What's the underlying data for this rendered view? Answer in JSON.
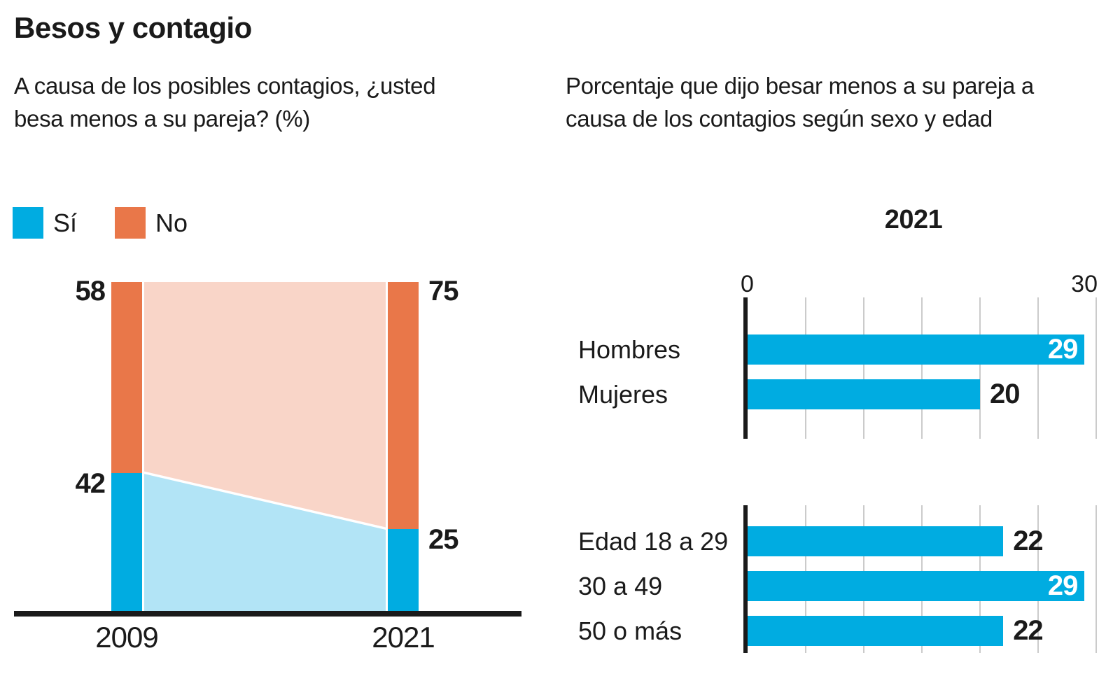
{
  "title": "Besos y contagio",
  "right_subtitle": "Porcentaje que dijo besar menos a su pareja a causa de los contagios según sexo y edad",
  "colors": {
    "blue": "#00ACE1",
    "light_blue": "#B2E4F6",
    "orange": "#E97749",
    "light_orange": "#F9D5C8",
    "text": "#1a1a1a",
    "grid": "#cbcbcb"
  },
  "chart_data": [
    {
      "type": "area",
      "title": "A causa de los posibles contagios, ¿usted besa menos a su pareja? (%)",
      "categories": [
        "2009",
        "2021"
      ],
      "stacked_total": 100,
      "legend_position": "top-left",
      "series": [
        {
          "name": "Sí",
          "values": [
            42,
            25
          ],
          "color": "#00ACE1",
          "area_color": "#B2E4F6"
        },
        {
          "name": "No",
          "values": [
            58,
            75
          ],
          "color": "#E97749",
          "area_color": "#F9D5C8"
        }
      ]
    },
    {
      "type": "bar",
      "orientation": "horizontal",
      "title": "2021",
      "categories": [
        "Hombres",
        "Mujeres"
      ],
      "values": [
        29,
        20
      ],
      "xlim": [
        0,
        30
      ],
      "tick_labels": [
        "0",
        "30"
      ],
      "gridline_step": 5,
      "grid": true,
      "color": "#00ACE1"
    },
    {
      "type": "bar",
      "orientation": "horizontal",
      "title": "",
      "categories": [
        "Edad 18 a 29",
        "30 a 49",
        "50 o más"
      ],
      "values": [
        22,
        29,
        22
      ],
      "xlim": [
        0,
        30
      ],
      "tick_labels": [],
      "gridline_step": 5,
      "grid": true,
      "color": "#00ACE1"
    }
  ]
}
